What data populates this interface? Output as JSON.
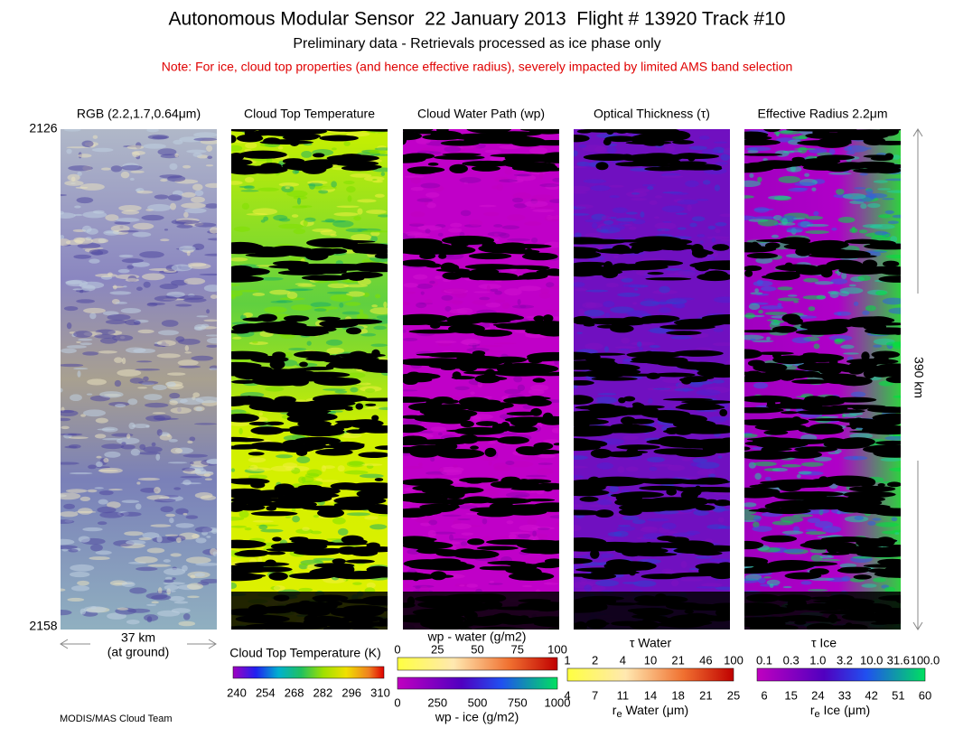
{
  "header": {
    "title": "Autonomous Modular Sensor  22 January 2013  Flight # 13920 Track #10",
    "subtitle": "Preliminary data - Retrievals processed as ice phase only",
    "note": "Note: For ice, cloud top properties (and hence effective radius), severely impacted by limited AMS band selection"
  },
  "panels": [
    {
      "title": "RGB (2.2,1.7,0.64μm)"
    },
    {
      "title": "Cloud Top Temperature"
    },
    {
      "title": "Cloud Water Path (wp)"
    },
    {
      "title": "Optical Thickness (τ)"
    },
    {
      "title": "Effective Radius 2.2μm"
    }
  ],
  "scan_lines": {
    "start": "2126",
    "end": "2158"
  },
  "scale": {
    "width": "37 km",
    "width_note": "(at ground)",
    "length": "390 km"
  },
  "colorbars": {
    "ctt": {
      "title": "Cloud Top Temperature (K)",
      "ticks": [
        "240",
        "254",
        "268",
        "282",
        "296",
        "310"
      ]
    },
    "wp": {
      "top_title": "wp - water (g/m2)",
      "top_ticks": [
        "0",
        "25",
        "50",
        "75",
        "100"
      ],
      "bottom_title": "wp - ice (g/m2)",
      "bottom_ticks": [
        "0",
        "250",
        "500",
        "750",
        "1000"
      ]
    },
    "tau_water": {
      "top_title": "τ Water",
      "top_ticks": [
        "1",
        "2",
        "4",
        "10",
        "21",
        "46",
        "100"
      ],
      "bottom_title": {
        "symbol": "r",
        "sub": "e",
        "rest": " Water (μm)"
      },
      "bottom_ticks": [
        "4",
        "7",
        "11",
        "14",
        "18",
        "21",
        "25"
      ]
    },
    "tau_ice": {
      "top_title": "τ Ice",
      "top_ticks": [
        "0.1",
        "0.3",
        "1.0",
        "3.2",
        "10.0",
        "31.6",
        "100.0"
      ],
      "bottom_title": {
        "symbol": "r",
        "sub": "e",
        "rest": " Ice (μm)"
      },
      "bottom_ticks": [
        "6",
        "15",
        "24",
        "33",
        "42",
        "51",
        "60"
      ]
    }
  },
  "footer": "MODIS/MAS Cloud Team"
}
